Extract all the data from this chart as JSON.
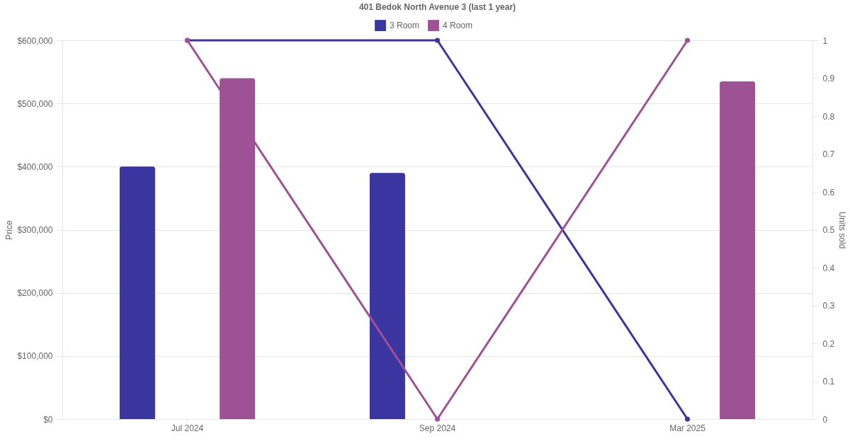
{
  "chart_data": {
    "type": "bar",
    "title": "401 Bedok North Avenue 3 (last 1 year)",
    "categories": [
      "Jul 2024",
      "Sep 2024",
      "Mar 2025"
    ],
    "series": [
      {
        "name": "3 Room",
        "color": "#3b35a0",
        "values": [
          400000,
          390000,
          null
        ]
      },
      {
        "name": "4 Room",
        "color": "#9e5194",
        "values": [
          540000,
          null,
          535000
        ]
      },
      {
        "type": "line",
        "axis": "y2",
        "color": "#3b35a0",
        "values": [
          1,
          1,
          0
        ]
      },
      {
        "type": "line",
        "axis": "y2",
        "color": "#9e5194",
        "values": [
          1,
          0,
          1
        ]
      }
    ],
    "ylabel": "Price",
    "y2label": "Units sold",
    "ylim": [
      0,
      600000
    ],
    "yticks": [
      {
        "value": 0,
        "label": "$0"
      },
      {
        "value": 100000,
        "label": "$100,000"
      },
      {
        "value": 200000,
        "label": "$200,000"
      },
      {
        "value": 300000,
        "label": "$300,000"
      },
      {
        "value": 400000,
        "label": "$400,000"
      },
      {
        "value": 500000,
        "label": "$500,000"
      },
      {
        "value": 600000,
        "label": "$600,000"
      }
    ],
    "y2lim": [
      0,
      1
    ],
    "y2ticks": [
      0,
      0.1,
      0.2,
      0.3,
      0.4,
      0.5,
      0.6,
      0.7,
      0.8,
      0.9,
      1
    ],
    "grid": "y",
    "legend": "top",
    "marker": "circle",
    "line_style": "solid"
  }
}
